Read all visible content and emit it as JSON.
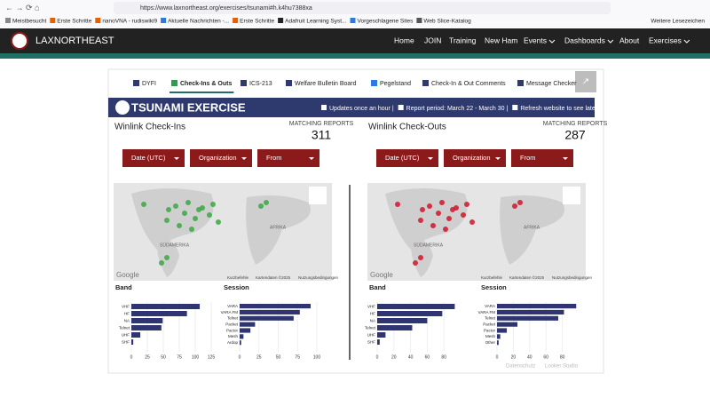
{
  "browser": {
    "url": "https://www.laxnortheast.org/exercises/tsunami#h.k4hu7388xa",
    "bookmarks": [
      "Meistbesucht",
      "Erste Schritte",
      "nanoVNA - rudiswiki9",
      "Aktuelle Nachrichten -...",
      "Erste Schritte",
      "Adafruit Learning Syst...",
      "Vorgeschlagene Sites",
      "Web Slice-Katalog"
    ],
    "more_bookmarks": "Weitere Lesezeichen"
  },
  "site": {
    "brand": "LAXNORTHEAST",
    "menu": [
      "Home",
      "JOIN",
      "Training",
      "New Ham",
      "Events",
      "Dashboards",
      "About",
      "Exercises"
    ]
  },
  "tabs": [
    "DYFI",
    "Check-Ins & Outs",
    "ICS-213",
    "Welfare Bulletin Board",
    "Pegelstand",
    "Check-In & Out Comments",
    "Message Checker"
  ],
  "banner": {
    "title": "TSUNAMI EXERCISE",
    "info": [
      "Updates once an hour |",
      "Report period: March 22 - March 30 |",
      "Refresh website to see latest"
    ]
  },
  "panels": [
    {
      "title": "Winlink Check-Ins",
      "matching_label": "MATCHING REPORTS",
      "matching_value": 311,
      "filters": [
        "Date (UTC)",
        "Organization",
        "From"
      ],
      "map": {
        "labels": [
          "AFRIKA",
          "SÜDAMERIKA"
        ],
        "footer": [
          "Kurzbefehle",
          "Kartendaten ©2025",
          "Nutzungsbedingungen"
        ],
        "logo": "Google",
        "dot_color": "#3aa843"
      },
      "charts": [
        {
          "title": "Band",
          "type": "bar",
          "categories": [
            "VHF",
            "HF",
            "NA",
            "Telnet",
            "UHF",
            "SHF"
          ],
          "values": [
            107,
            87,
            49,
            47,
            14,
            3
          ],
          "xlim": [
            0,
            125
          ],
          "xticks": [
            0,
            25,
            50,
            75,
            100,
            125
          ],
          "color": "#2e3570"
        },
        {
          "title": "Session",
          "type": "bar",
          "categories": [
            "VARA",
            "VARA FM",
            "Telnet",
            "Packet",
            "Pactor",
            "Mesh",
            "Ardop"
          ],
          "values": [
            92,
            78,
            70,
            20,
            14,
            5,
            2
          ],
          "xlim": [
            0,
            115
          ],
          "xticks": [
            0,
            25,
            50,
            75,
            100
          ],
          "color": "#2e3570"
        }
      ]
    },
    {
      "title": "Winlink Check-Outs",
      "matching_label": "MATCHING REPORTS",
      "matching_value": 287,
      "filters": [
        "Date (UTC)",
        "Organization",
        "From"
      ],
      "map": {
        "labels": [
          "AFRIKA",
          "SÜDAMERIKA"
        ],
        "footer": [
          "Kurzbefehle",
          "Kartendaten ©2025",
          "Nutzungsbedingungen"
        ],
        "logo": "Google",
        "dot_color": "#d0152c"
      },
      "charts": [
        {
          "title": "Band",
          "type": "bar",
          "categories": [
            "VHF",
            "HF",
            "NA",
            "Telnet",
            "UHF",
            "SHF"
          ],
          "values": [
            93,
            78,
            60,
            42,
            10,
            3
          ],
          "xlim": [
            0,
            100
          ],
          "xticks": [
            0,
            20,
            40,
            60,
            80
          ],
          "color": "#2e3570"
        },
        {
          "title": "Session",
          "type": "bar",
          "categories": [
            "VARA",
            "VARA FM",
            "Telnet",
            "Packet",
            "Pactor",
            "Mesh",
            "Other"
          ],
          "values": [
            97,
            82,
            75,
            25,
            12,
            4,
            2
          ],
          "xlim": [
            0,
            100
          ],
          "xticks": [
            0,
            20,
            40,
            60,
            80
          ],
          "color": "#2e3570"
        }
      ]
    }
  ],
  "footer": [
    "Datenschutz",
    "Looker Studio"
  ]
}
